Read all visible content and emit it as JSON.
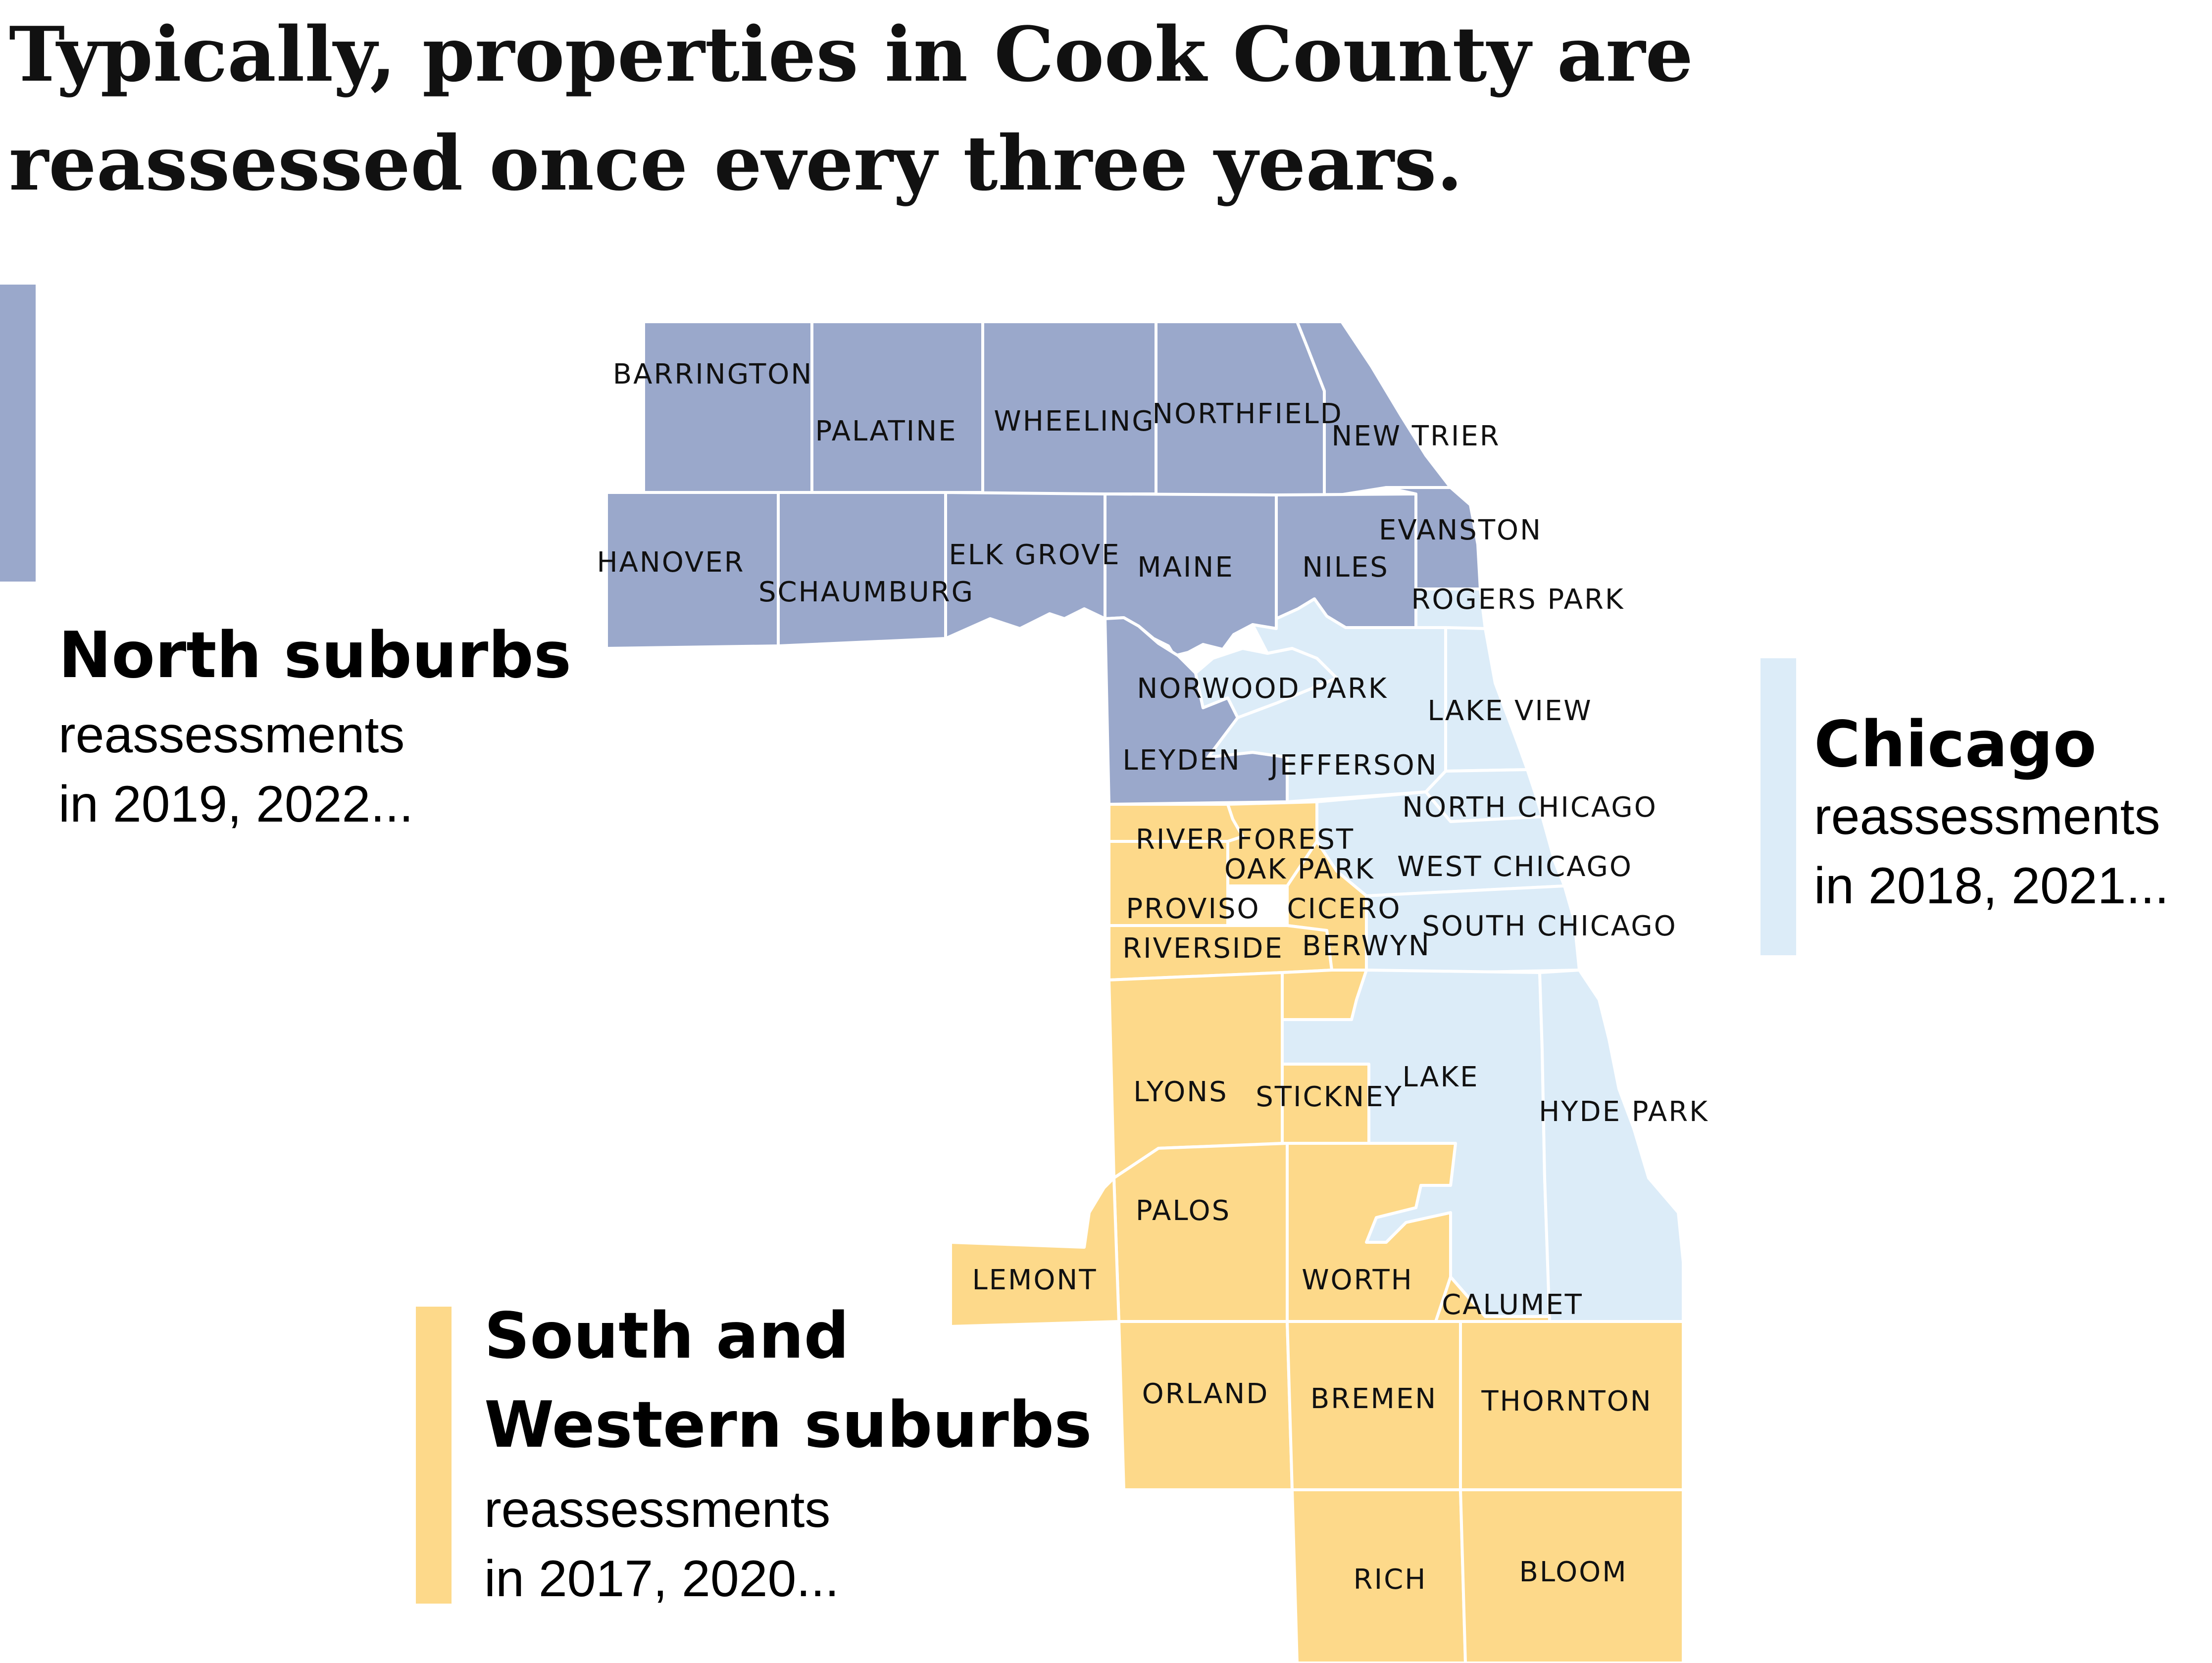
{
  "title": "Typically, properties in Cook County are reassessed once every three years.",
  "colors": {
    "north": "#9aa8cb",
    "chicago": "#dcecf8",
    "south": "#fdd98a",
    "border": "#ffffff"
  },
  "legend": {
    "north": {
      "heading": "North suburbs",
      "line1": "reassessments",
      "line2": "in 2019, 2022..."
    },
    "chicago": {
      "heading": "Chicago",
      "line1": "reassessments",
      "line2": "in 2018, 2021..."
    },
    "south": {
      "heading1": "South and",
      "heading2": "Western suburbs",
      "line1": "reassessments",
      "line2": "in 2017, 2020..."
    }
  },
  "townships": [
    {
      "name": "BARRINGTON",
      "region": "north"
    },
    {
      "name": "PALATINE",
      "region": "north"
    },
    {
      "name": "WHEELING",
      "region": "north"
    },
    {
      "name": "NORTHFIELD",
      "region": "north"
    },
    {
      "name": "NEW TRIER",
      "region": "north"
    },
    {
      "name": "HANOVER",
      "region": "north"
    },
    {
      "name": "SCHAUMBURG",
      "region": "north"
    },
    {
      "name": "ELK GROVE",
      "region": "north"
    },
    {
      "name": "MAINE",
      "region": "north"
    },
    {
      "name": "NILES",
      "region": "north"
    },
    {
      "name": "EVANSTON",
      "region": "north"
    },
    {
      "name": "LEYDEN",
      "region": "north"
    },
    {
      "name": "ROGERS PARK",
      "region": "chicago"
    },
    {
      "name": "NORWOOD PARK",
      "region": "chicago"
    },
    {
      "name": "LAKE VIEW",
      "region": "chicago"
    },
    {
      "name": "JEFFERSON",
      "region": "chicago"
    },
    {
      "name": "NORTH CHICAGO",
      "region": "chicago"
    },
    {
      "name": "WEST CHICAGO",
      "region": "chicago"
    },
    {
      "name": "SOUTH CHICAGO",
      "region": "chicago"
    },
    {
      "name": "LAKE",
      "region": "chicago"
    },
    {
      "name": "HYDE PARK",
      "region": "chicago"
    },
    {
      "name": "RIVER FOREST",
      "region": "south"
    },
    {
      "name": "OAK PARK",
      "region": "south"
    },
    {
      "name": "PROVISO",
      "region": "south"
    },
    {
      "name": "CICERO",
      "region": "south"
    },
    {
      "name": "RIVERSIDE",
      "region": "south"
    },
    {
      "name": "BERWYN",
      "region": "south"
    },
    {
      "name": "LYONS",
      "region": "south"
    },
    {
      "name": "STICKNEY",
      "region": "south"
    },
    {
      "name": "PALOS",
      "region": "south"
    },
    {
      "name": "LEMONT",
      "region": "south"
    },
    {
      "name": "WORTH",
      "region": "south"
    },
    {
      "name": "CALUMET",
      "region": "south"
    },
    {
      "name": "ORLAND",
      "region": "south"
    },
    {
      "name": "BREMEN",
      "region": "south"
    },
    {
      "name": "THORNTON",
      "region": "south"
    },
    {
      "name": "RICH",
      "region": "south"
    },
    {
      "name": "BLOOM",
      "region": "south"
    }
  ]
}
